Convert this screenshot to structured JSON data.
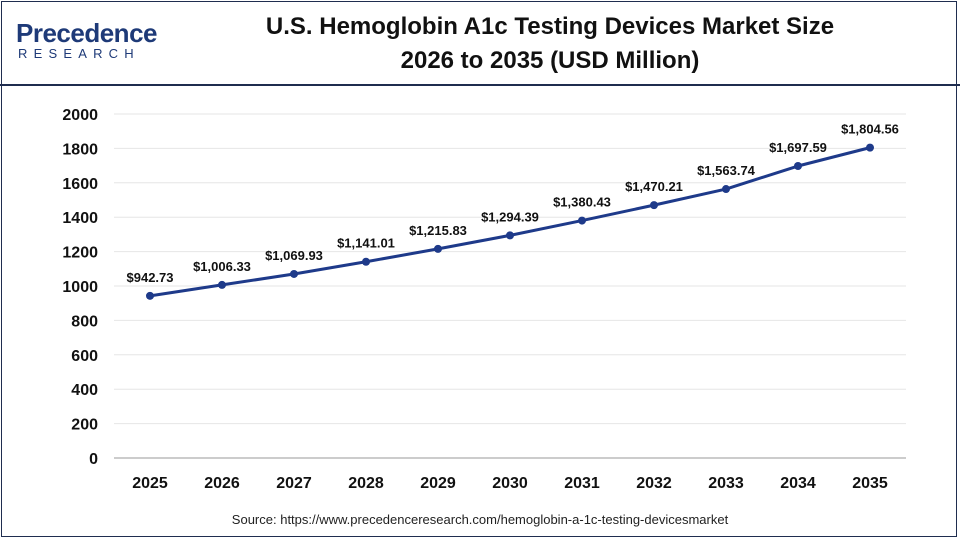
{
  "logo": {
    "main": "Precedence",
    "sub": "RESEARCH"
  },
  "header": {
    "title_line1": "U.S. Hemoglobin A1c Testing Devices Market Size",
    "title_line2": "2026 to 2035 (USD Million)"
  },
  "source": "Source: https://www.precedenceresearch.com/hemoglobin-a-1c-testing-devicesmarket",
  "colors": {
    "line": "#1e3a8a",
    "frame": "#1f2d4f",
    "grid": "#e6e6e6"
  },
  "chart_data": {
    "type": "line",
    "title": "U.S. Hemoglobin A1c Testing Devices Market Size 2026 to 2035 (USD Million)",
    "xlabel": "",
    "ylabel": "",
    "categories": [
      "2025",
      "2026",
      "2027",
      "2028",
      "2029",
      "2030",
      "2031",
      "2032",
      "2033",
      "2034",
      "2035"
    ],
    "series": [
      {
        "values": [
          942.73,
          1006.33,
          1069.93,
          1141.01,
          1215.83,
          1294.39,
          1380.43,
          1470.21,
          1563.74,
          1697.59,
          1804.56
        ],
        "labels": [
          "$942.73",
          "$1,006.33",
          "$1,069.93",
          "$1,141.01",
          "$1,215.83",
          "$1,294.39",
          "$1,380.43",
          "$1,470.21",
          "$1,563.74",
          "$1,697.59",
          "$1,804.56"
        ]
      }
    ],
    "ylim": [
      0,
      2000
    ],
    "yticks": [
      "0",
      "200",
      "400",
      "600",
      "800",
      "1000",
      "1200",
      "1400",
      "1600",
      "1800",
      "2000"
    ],
    "grid": true,
    "legend": "none"
  }
}
